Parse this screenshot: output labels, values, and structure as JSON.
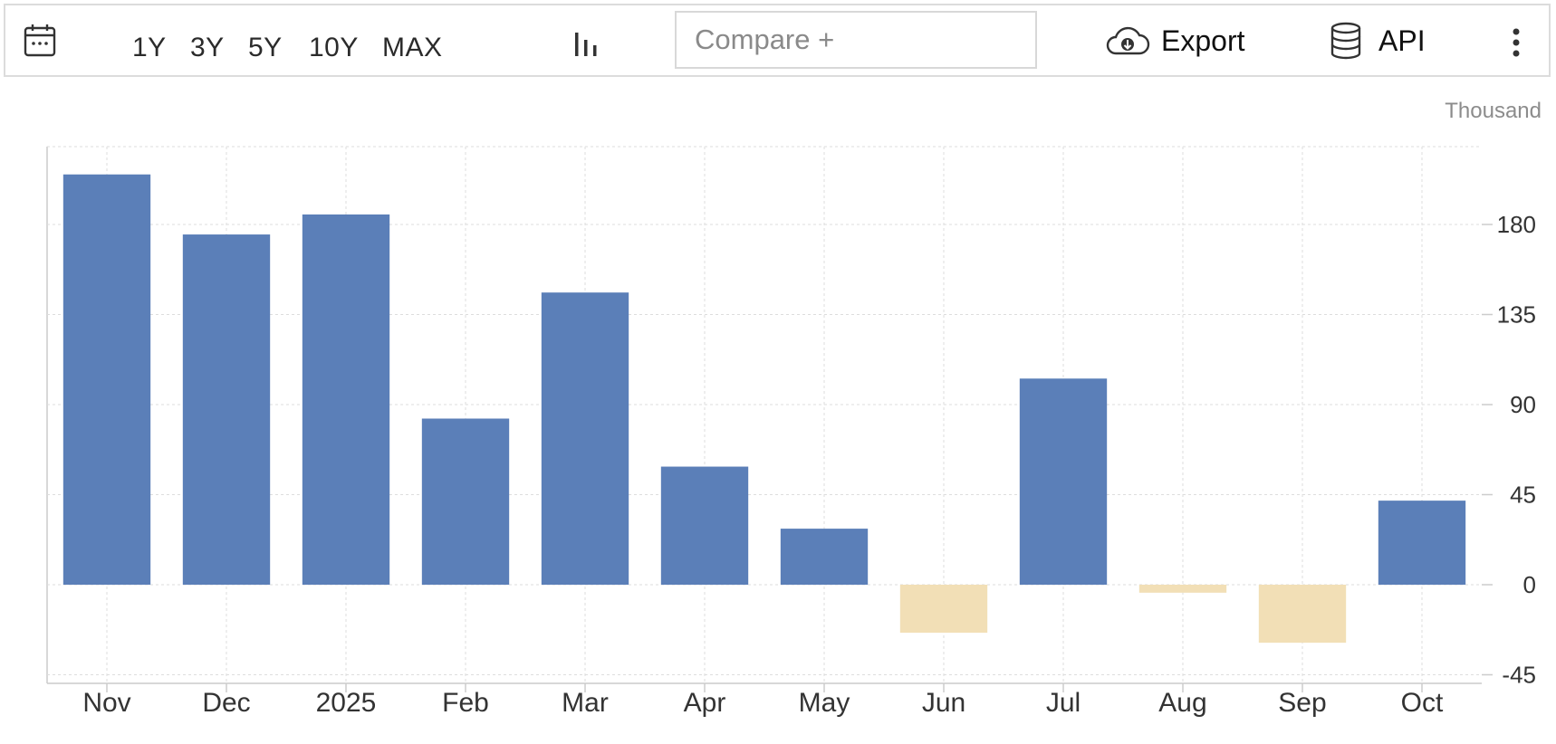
{
  "toolbar": {
    "calendar_icon": "calendar-icon",
    "ranges": [
      "1Y",
      "3Y",
      "5Y",
      "10Y",
      "MAX"
    ],
    "chart_type_icon": "bar-chart-icon",
    "compare_placeholder": "Compare +",
    "export_label": "Export",
    "export_icon": "cloud-download-icon",
    "api_label": "API",
    "api_icon": "database-icon",
    "more_icon": "kebab-menu-icon"
  },
  "colors": {
    "positive": "#5b7fb8",
    "negative": "#f2dfb6",
    "grid": "#dddddd",
    "axis": "#cccccc"
  },
  "chart_data": {
    "type": "bar",
    "unit": "Thousand",
    "categories": [
      "Nov",
      "Dec",
      "2025",
      "Feb",
      "Mar",
      "Apr",
      "May",
      "Jun",
      "Jul",
      "Aug",
      "Sep",
      "Oct"
    ],
    "values": [
      205,
      175,
      185,
      83,
      146,
      59,
      28,
      -24,
      103,
      -4,
      -29,
      42
    ],
    "yticks": [
      -45,
      0,
      45,
      90,
      135,
      180
    ],
    "ylim": [
      -50,
      222
    ],
    "grid": true,
    "ylabel": "",
    "xlabel": "",
    "title": ""
  }
}
